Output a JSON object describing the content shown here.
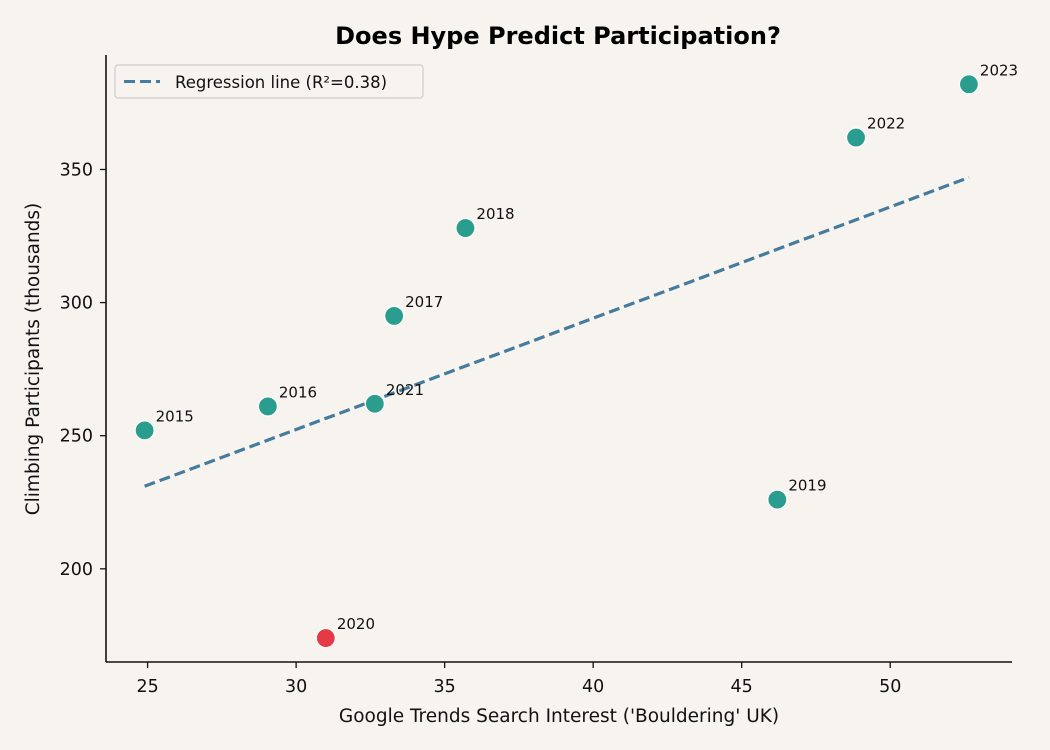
{
  "chart_data": {
    "type": "scatter",
    "title": "Does Hype Predict Participation?",
    "xlabel": "Google Trends Search Interest ('Bouldering' UK)",
    "ylabel": "Climbing Participants (thousands)",
    "xlim": [
      23.6,
      54.1
    ],
    "ylim": [
      165,
      393
    ],
    "x_ticks": [
      25,
      30,
      35,
      40,
      45,
      50
    ],
    "y_ticks": [
      200,
      250,
      300,
      350
    ],
    "grid": false,
    "legend_position": "top-left",
    "points": [
      {
        "label": "2015",
        "x": 24.9,
        "y": 252,
        "color": "#2a9d8f"
      },
      {
        "label": "2016",
        "x": 29.05,
        "y": 261,
        "color": "#2a9d8f"
      },
      {
        "label": "2017",
        "x": 33.3,
        "y": 295,
        "color": "#2a9d8f"
      },
      {
        "label": "2018",
        "x": 35.7,
        "y": 328,
        "color": "#2a9d8f"
      },
      {
        "label": "2019",
        "x": 46.2,
        "y": 226,
        "color": "#2a9d8f"
      },
      {
        "label": "2020",
        "x": 31.0,
        "y": 174,
        "color": "#e63946"
      },
      {
        "label": "2021",
        "x": 32.65,
        "y": 262,
        "color": "#2a9d8f"
      },
      {
        "label": "2022",
        "x": 48.85,
        "y": 362,
        "color": "#2a9d8f"
      },
      {
        "label": "2023",
        "x": 52.65,
        "y": 382,
        "color": "#2a9d8f"
      }
    ],
    "regression": {
      "label": "Regression line (R²=0.38)",
      "x": [
        24.9,
        52.65
      ],
      "y": [
        231,
        347
      ],
      "color": "#457b9d",
      "style": "dashed"
    }
  }
}
